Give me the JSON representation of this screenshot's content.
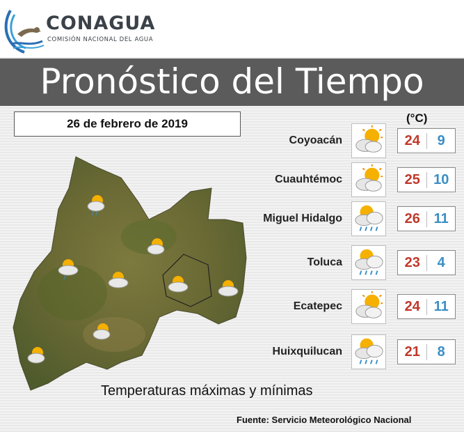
{
  "brand": {
    "name": "CONAGUA",
    "subtitle": "COMISIÓN NACIONAL DEL AGUA"
  },
  "title": "Pronóstico del Tiempo",
  "date": "26 de febrero de 2019",
  "unit": "(°C)",
  "forecasts": [
    {
      "city": "Coyoacán",
      "icon": "partly-cloudy-sun",
      "max": "24",
      "min": "9"
    },
    {
      "city": "Cuauhtémoc",
      "icon": "partly-cloudy-sun",
      "max": "25",
      "min": "10"
    },
    {
      "city": "Miguel Hidalgo",
      "icon": "sun-cloud-rain",
      "max": "26",
      "min": "11"
    },
    {
      "city": "Toluca",
      "icon": "sun-cloud-rain",
      "max": "23",
      "min": "4"
    },
    {
      "city": "Ecatepec",
      "icon": "partly-cloudy-sun",
      "max": "24",
      "min": "11"
    },
    {
      "city": "Huixquilucan",
      "icon": "sun-cloud-rain",
      "max": "21",
      "min": "8"
    }
  ],
  "footer_text": "Temperaturas máximas y mínimas",
  "source": "Fuente: Servicio Meteorológico Nacional",
  "colors": {
    "title_bar": "#5b5b5b",
    "max_temp": "#c0392b",
    "min_temp": "#3a8ec6",
    "brand_blue": "#2a6fb3"
  }
}
